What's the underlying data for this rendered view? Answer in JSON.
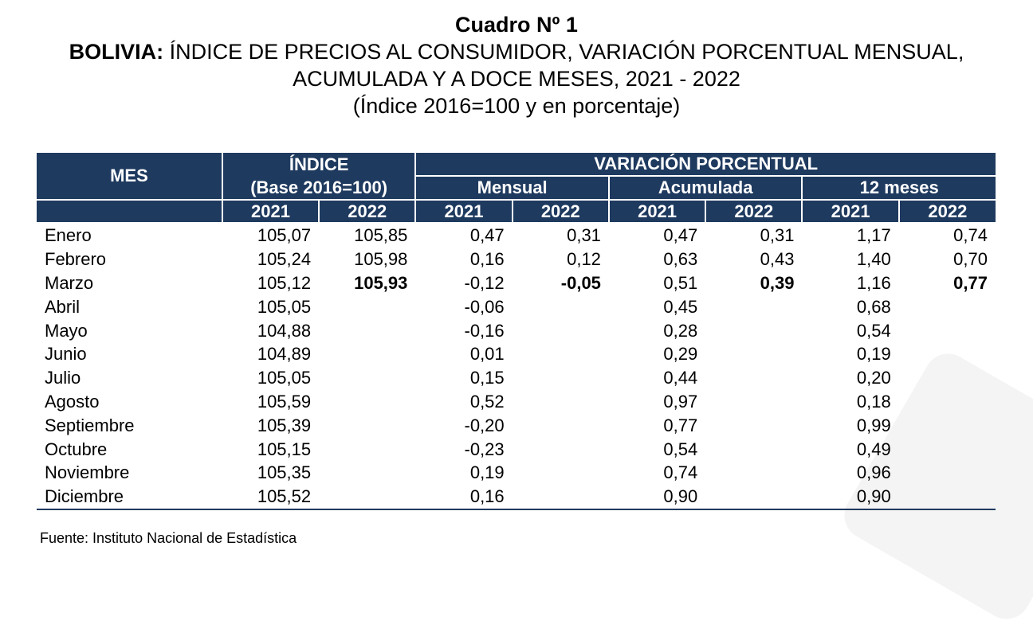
{
  "title": {
    "line1": "Cuadro Nº 1",
    "line2_bold": "BOLIVIA:",
    "line2_rest": " ÍNDICE DE PRECIOS AL CONSUMIDOR, VARIACIÓN PORCENTUAL MENSUAL,",
    "line3": "ACUMULADA Y A DOCE MESES, 2021 - 2022",
    "line4": "(Índice 2016=100 y en porcentaje)"
  },
  "header": {
    "mes": "MES",
    "indice_line1": "ÍNDICE",
    "indice_line2": "(Base 2016=100)",
    "variacion": "VARIACIÓN PORCENTUAL",
    "mensual": "Mensual",
    "acumulada": "Acumulada",
    "doce_meses": "12 meses",
    "years": [
      "2021",
      "2022",
      "2021",
      "2022",
      "2021",
      "2022",
      "2021",
      "2022"
    ]
  },
  "rows": [
    {
      "mes": "Enero",
      "i21": "105,07",
      "i22": "105,85",
      "m21": "0,47",
      "m22": "0,31",
      "a21": "0,47",
      "a22": "0,31",
      "d21": "1,17",
      "d22": "0,74"
    },
    {
      "mes": "Febrero",
      "i21": "105,24",
      "i22": "105,98",
      "m21": "0,16",
      "m22": "0,12",
      "a21": "0,63",
      "a22": "0,43",
      "d21": "1,40",
      "d22": "0,70"
    },
    {
      "mes": "Marzo",
      "i21": "105,12",
      "i22": "105,93",
      "m21": "-0,12",
      "m22": "-0,05",
      "a21": "0,51",
      "a22": "0,39",
      "d21": "1,16",
      "d22": "0,77"
    },
    {
      "mes": "Abril",
      "i21": "105,05",
      "i22": "",
      "m21": "-0,06",
      "m22": "",
      "a21": "0,45",
      "a22": "",
      "d21": "0,68",
      "d22": ""
    },
    {
      "mes": "Mayo",
      "i21": "104,88",
      "i22": "",
      "m21": "-0,16",
      "m22": "",
      "a21": "0,28",
      "a22": "",
      "d21": "0,54",
      "d22": ""
    },
    {
      "mes": "Junio",
      "i21": "104,89",
      "i22": "",
      "m21": "0,01",
      "m22": "",
      "a21": "0,29",
      "a22": "",
      "d21": "0,19",
      "d22": ""
    },
    {
      "mes": "Julio",
      "i21": "105,05",
      "i22": "",
      "m21": "0,15",
      "m22": "",
      "a21": "0,44",
      "a22": "",
      "d21": "0,20",
      "d22": ""
    },
    {
      "mes": "Agosto",
      "i21": "105,59",
      "i22": "",
      "m21": "0,52",
      "m22": "",
      "a21": "0,97",
      "a22": "",
      "d21": "0,18",
      "d22": ""
    },
    {
      "mes": "Septiembre",
      "i21": "105,39",
      "i22": "",
      "m21": "-0,20",
      "m22": "",
      "a21": "0,77",
      "a22": "",
      "d21": "0,99",
      "d22": ""
    },
    {
      "mes": "Octubre",
      "i21": "105,15",
      "i22": "",
      "m21": "-0,23",
      "m22": "",
      "a21": "0,54",
      "a22": "",
      "d21": "0,49",
      "d22": ""
    },
    {
      "mes": "Noviembre",
      "i21": "105,35",
      "i22": "",
      "m21": "0,19",
      "m22": "",
      "a21": "0,74",
      "a22": "",
      "d21": "0,96",
      "d22": ""
    },
    {
      "mes": "Diciembre",
      "i21": "105,52",
      "i22": "",
      "m21": "0,16",
      "m22": "",
      "a21": "0,90",
      "a22": "",
      "d21": "0,90",
      "d22": ""
    }
  ],
  "footnote": "Fuente: Instituto Nacional de Estadística",
  "colors": {
    "header_bg": "#1f3a5f",
    "header_text": "#ffffff"
  }
}
